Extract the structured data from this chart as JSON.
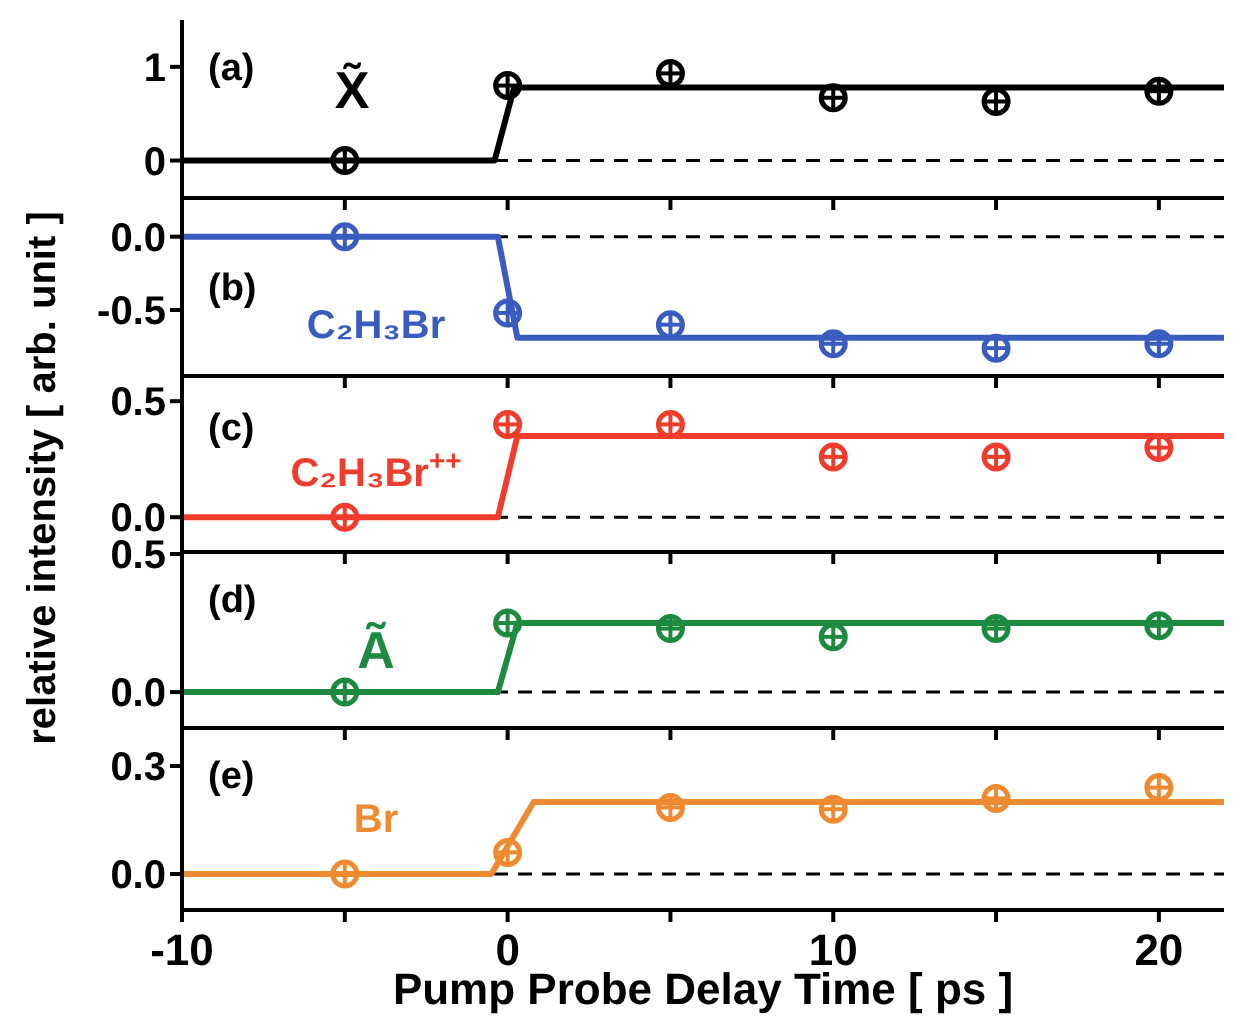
{
  "chart_data": [
    {
      "type": "scatter",
      "annotations": [
        "(a)",
        "X̃"
      ],
      "xlim": [
        -10,
        22
      ],
      "xticks": [
        {
          "value": -10,
          "label": null
        },
        {
          "value": -5,
          "label": null
        },
        {
          "value": 0,
          "label": null
        },
        {
          "value": 5,
          "label": null
        },
        {
          "value": 10,
          "label": null
        },
        {
          "value": 15,
          "label": null
        },
        {
          "value": 20,
          "label": null
        }
      ],
      "ylim": [
        -0.4,
        1.5
      ],
      "yticks": [
        0,
        1
      ],
      "tick_labels": "y",
      "legend": false,
      "grid": false,
      "marker": "circle",
      "ref_lines": [
        {
          "axis": "y",
          "value": 0,
          "color": "#000000",
          "line_style": "dashed"
        }
      ],
      "series": [
        {
          "type": "scatter",
          "color": "#000000",
          "x": [
            -5,
            0,
            5,
            10,
            15,
            20
          ],
          "values": [
            0,
            0.8,
            0.93,
            0.67,
            0.63,
            0.74
          ]
        },
        {
          "type": "line",
          "color": "#000000",
          "marker": "none",
          "line_style": "solid",
          "x": [
            -10,
            -0.4,
            0.2,
            22
          ],
          "values": [
            0,
            0,
            0.78,
            0.78
          ]
        }
      ]
    },
    {
      "type": "scatter",
      "annotations": [
        "(b)",
        "C₂H₃Br"
      ],
      "xlim": [
        -10,
        22
      ],
      "xticks": [
        {
          "value": -10,
          "label": null
        },
        {
          "value": -5,
          "label": null
        },
        {
          "value": 0,
          "label": null
        },
        {
          "value": 5,
          "label": null
        },
        {
          "value": 10,
          "label": null
        },
        {
          "value": 15,
          "label": null
        },
        {
          "value": 20,
          "label": null
        }
      ],
      "ylim": [
        -0.95,
        0.25
      ],
      "yticks": [
        {
          "value": -0.5,
          "label": "-0.5"
        },
        {
          "value": 0,
          "label": "0.0"
        }
      ],
      "tick_labels": "y",
      "legend": false,
      "grid": false,
      "marker": "circle",
      "ref_lines": [
        {
          "axis": "y",
          "value": 0,
          "color": "#000000",
          "line_style": "dashed"
        }
      ],
      "series": [
        {
          "type": "scatter",
          "color": "#3a5cc0",
          "x": [
            -5,
            0,
            5,
            10,
            15,
            20
          ],
          "values": [
            0,
            -0.52,
            -0.6,
            -0.73,
            -0.76,
            -0.73
          ]
        },
        {
          "type": "line",
          "color": "#3a5cc0",
          "marker": "none",
          "line_style": "solid",
          "x": [
            -10,
            -0.3,
            0.3,
            22
          ],
          "values": [
            0,
            0,
            -0.69,
            -0.69
          ]
        }
      ]
    },
    {
      "type": "scatter",
      "ylabel": "relative intensity [ arb. unit ]",
      "annotations": [
        "(c)",
        "C₂H₃Br$^{++}$"
      ],
      "xlim": [
        -10,
        22
      ],
      "xticks": [
        {
          "value": -10,
          "label": null
        },
        {
          "value": -5,
          "label": null
        },
        {
          "value": 0,
          "label": null
        },
        {
          "value": 5,
          "label": null
        },
        {
          "value": 10,
          "label": null
        },
        {
          "value": 15,
          "label": null
        },
        {
          "value": 20,
          "label": null
        }
      ],
      "ylim": [
        -0.15,
        0.6
      ],
      "yticks": [
        {
          "value": 0,
          "label": "0.0"
        },
        {
          "value": 0.5,
          "label": "0.5"
        }
      ],
      "tick_labels": "y",
      "legend": false,
      "grid": false,
      "marker": "circle",
      "ref_lines": [
        {
          "axis": "y",
          "value": 0,
          "color": "#000000",
          "line_style": "dashed"
        }
      ],
      "series": [
        {
          "type": "scatter",
          "color": "#f03c2c",
          "x": [
            -5,
            0,
            5,
            10,
            15,
            20
          ],
          "values": [
            0,
            0.4,
            0.4,
            0.26,
            0.26,
            0.3
          ]
        },
        {
          "type": "line",
          "color": "#f03c2c",
          "marker": "none",
          "line_style": "solid",
          "x": [
            -10,
            -0.3,
            0.3,
            22
          ],
          "values": [
            0,
            0,
            0.35,
            0.35
          ]
        }
      ]
    },
    {
      "type": "scatter",
      "annotations": [
        "(d)",
        "Ã"
      ],
      "xlim": [
        -10,
        22
      ],
      "xticks": [
        {
          "value": -10,
          "label": null
        },
        {
          "value": -5,
          "label": null
        },
        {
          "value": 0,
          "label": null
        },
        {
          "value": 5,
          "label": null
        },
        {
          "value": 10,
          "label": null
        },
        {
          "value": 15,
          "label": null
        },
        {
          "value": 20,
          "label": null
        }
      ],
      "ylim": [
        -0.13,
        0.5
      ],
      "yticks": [
        {
          "value": 0,
          "label": "0.0"
        },
        {
          "value": 0.5,
          "label": "0.5"
        }
      ],
      "tick_labels": "y",
      "legend": false,
      "grid": false,
      "marker": "circle",
      "ref_lines": [
        {
          "axis": "y",
          "value": 0,
          "color": "#000000",
          "line_style": "dashed"
        }
      ],
      "series": [
        {
          "type": "scatter",
          "color": "#1e8a40",
          "x": [
            -5,
            0,
            5,
            10,
            15,
            20
          ],
          "values": [
            0,
            0.25,
            0.23,
            0.2,
            0.23,
            0.24
          ]
        },
        {
          "type": "line",
          "color": "#1e8a40",
          "marker": "none",
          "line_style": "solid",
          "x": [
            -10,
            -0.3,
            0.3,
            22
          ],
          "values": [
            0,
            0,
            0.25,
            0.25
          ]
        }
      ]
    },
    {
      "type": "scatter",
      "xlabel": "Pump Probe Delay Time [ ps ]",
      "annotations": [
        "(e)",
        "Br"
      ],
      "xlim": [
        -10,
        22
      ],
      "xticks": [
        -10,
        {
          "value": -5,
          "label": null
        },
        0,
        {
          "value": 5,
          "label": null
        },
        10,
        {
          "value": 15,
          "label": null
        },
        20
      ],
      "ylim": [
        -0.1,
        0.4
      ],
      "yticks": [
        {
          "value": 0,
          "label": "0.0"
        },
        {
          "value": 0.3,
          "label": "0.3"
        }
      ],
      "legend": false,
      "grid": false,
      "marker": "circle",
      "ref_lines": [
        {
          "axis": "y",
          "value": 0,
          "color": "#000000",
          "line_style": "dashed"
        }
      ],
      "series": [
        {
          "type": "scatter",
          "color": "#f08a30",
          "x": [
            -5,
            0,
            5,
            10,
            15,
            20
          ],
          "values": [
            0,
            0.06,
            0.185,
            0.18,
            0.21,
            0.24
          ]
        },
        {
          "type": "line",
          "color": "#f08a30",
          "marker": "none",
          "line_style": "solid",
          "x": [
            -10,
            -0.5,
            0.8,
            22
          ],
          "values": [
            0,
            0,
            0.2,
            0.2
          ]
        }
      ]
    }
  ]
}
